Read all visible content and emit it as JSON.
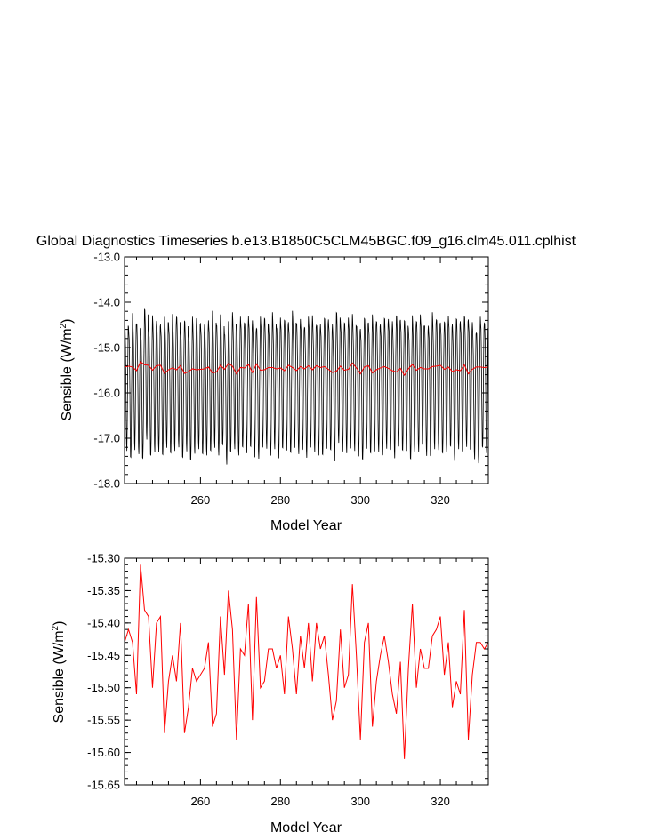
{
  "title": "Global Diagnostics Timeseries b.e13.B1850C5CLM45BGC.f09_g16.clm45.011.cplhist",
  "chart_data": [
    {
      "type": "line",
      "title": "Global Diagnostics Timeseries b.e13.B1850C5CLM45BGC.f09_g16.clm45.011.cplhist",
      "xlabel": "Model Year",
      "ylabel": "Sensible (W/m²)",
      "ylabel_main": "Sensible (W/m",
      "ylabel_sup": "2",
      "ylabel_tail": ")",
      "xlim": [
        241,
        332
      ],
      "ylim": [
        -18.0,
        -13.0
      ],
      "xticks": [
        260,
        280,
        300,
        320
      ],
      "xtick_labels": [
        "260",
        "280",
        "300",
        "320"
      ],
      "yticks": [
        -18.0,
        -17.0,
        -16.0,
        -15.0,
        -14.0,
        -13.0
      ],
      "ytick_labels": [
        "-18.0",
        "-17.0",
        "-16.0",
        "-15.0",
        "-14.0",
        "-13.0"
      ],
      "grid": false,
      "series": [
        {
          "color": "#000000",
          "sampling": "monthly",
          "x_start": 241,
          "cycle": [
            -14.4,
            -14.5,
            -14.7,
            -15.1,
            -15.8,
            -16.6,
            -17.2,
            -17.3,
            -16.9,
            -16.0,
            -15.2,
            -14.6
          ],
          "yearly_offsets": [
            0.05,
            -0.15,
            0.1,
            -0.05,
            -0.2,
            0.3,
            -0.1,
            0.05,
            0.0,
            -0.12,
            0.12,
            -0.05,
            0.08,
            0.1,
            -0.18,
            0.04,
            -0.2,
            0.02,
            0.06,
            -0.1,
            -0.05,
            0.0,
            0.15,
            -0.08,
            0.1,
            -0.25,
            -0.02,
            0.12,
            -0.08,
            0.05,
            0.0,
            0.09,
            -0.06,
            -0.15,
            0.05,
            0.1,
            -0.1,
            0.12,
            -0.14,
            0.03,
            0.06,
            -0.04,
            0.15,
            -0.05,
            0.0,
            -0.1,
            0.08,
            0.05,
            -0.08,
            -0.12,
            0.1,
            0.02,
            -0.15,
            0.2,
            -0.04,
            0.0,
            0.06,
            0.08,
            -0.1,
            -0.22,
            0.1,
            -0.05,
            0.07,
            0.0,
            -0.12,
            0.1,
            0.03,
            -0.08,
            0.12,
            -0.02,
            0.05,
            -0.18,
            0.05,
            0.0,
            0.1,
            -0.06,
            -0.12,
            0.12,
            0.04,
            -0.08,
            0.02,
            0.1,
            -0.14,
            0.06,
            -0.05,
            0.14,
            0.02,
            -0.1,
            -0.25,
            0.05,
            0.0
          ]
        },
        {
          "color": "#ff0000",
          "sampling": "annual",
          "x": [
            241,
            242,
            243,
            244,
            245,
            246,
            247,
            248,
            249,
            250,
            251,
            252,
            253,
            254,
            255,
            256,
            257,
            258,
            259,
            260,
            261,
            262,
            263,
            264,
            265,
            266,
            267,
            268,
            269,
            270,
            271,
            272,
            273,
            274,
            275,
            276,
            277,
            278,
            279,
            280,
            281,
            282,
            283,
            284,
            285,
            286,
            287,
            288,
            289,
            290,
            291,
            292,
            293,
            294,
            295,
            296,
            297,
            298,
            299,
            300,
            301,
            302,
            303,
            304,
            305,
            306,
            307,
            308,
            309,
            310,
            311,
            312,
            313,
            314,
            315,
            316,
            317,
            318,
            319,
            320,
            321,
            322,
            323,
            324,
            325,
            326,
            327,
            328,
            329,
            330,
            331,
            332
          ],
          "values": [
            -15.43,
            -15.41,
            -15.43,
            -15.51,
            -15.31,
            -15.38,
            -15.39,
            -15.5,
            -15.4,
            -15.39,
            -15.57,
            -15.49,
            -15.45,
            -15.49,
            -15.4,
            -15.57,
            -15.53,
            -15.47,
            -15.49,
            -15.48,
            -15.47,
            -15.43,
            -15.56,
            -15.54,
            -15.39,
            -15.48,
            -15.35,
            -15.41,
            -15.58,
            -15.44,
            -15.45,
            -15.37,
            -15.55,
            -15.36,
            -15.5,
            -15.49,
            -15.44,
            -15.44,
            -15.47,
            -15.45,
            -15.51,
            -15.39,
            -15.44,
            -15.51,
            -15.42,
            -15.47,
            -15.4,
            -15.49,
            -15.4,
            -15.44,
            -15.42,
            -15.48,
            -15.55,
            -15.52,
            -15.41,
            -15.5,
            -15.48,
            -15.34,
            -15.45,
            -15.58,
            -15.43,
            -15.4,
            -15.56,
            -15.49,
            -15.45,
            -15.42,
            -15.46,
            -15.51,
            -15.54,
            -15.46,
            -15.61,
            -15.47,
            -15.37,
            -15.5,
            -15.44,
            -15.47,
            -15.47,
            -15.42,
            -15.41,
            -15.39,
            -15.48,
            -15.43,
            -15.53,
            -15.49,
            -15.51,
            -15.38,
            -15.58,
            -15.48,
            -15.43,
            -15.43,
            -15.44,
            -15.43
          ]
        }
      ]
    },
    {
      "type": "line",
      "title": "",
      "xlabel": "Model Year",
      "ylabel": "Sensible (W/m²)",
      "ylabel_main": "Sensible (W/m",
      "ylabel_sup": "2",
      "ylabel_tail": ")",
      "xlim": [
        241,
        332
      ],
      "ylim": [
        -15.65,
        -15.3
      ],
      "xticks": [
        260,
        280,
        300,
        320
      ],
      "xtick_labels": [
        "260",
        "280",
        "300",
        "320"
      ],
      "yticks": [
        -15.65,
        -15.6,
        -15.55,
        -15.5,
        -15.45,
        -15.4,
        -15.35,
        -15.3
      ],
      "ytick_labels": [
        "-15.65",
        "-15.60",
        "-15.55",
        "-15.50",
        "-15.45",
        "-15.40",
        "-15.35",
        "-15.30"
      ],
      "grid": false,
      "series": [
        {
          "color": "#ff0000",
          "x": [
            241,
            242,
            243,
            244,
            245,
            246,
            247,
            248,
            249,
            250,
            251,
            252,
            253,
            254,
            255,
            256,
            257,
            258,
            259,
            260,
            261,
            262,
            263,
            264,
            265,
            266,
            267,
            268,
            269,
            270,
            271,
            272,
            273,
            274,
            275,
            276,
            277,
            278,
            279,
            280,
            281,
            282,
            283,
            284,
            285,
            286,
            287,
            288,
            289,
            290,
            291,
            292,
            293,
            294,
            295,
            296,
            297,
            298,
            299,
            300,
            301,
            302,
            303,
            304,
            305,
            306,
            307,
            308,
            309,
            310,
            311,
            312,
            313,
            314,
            315,
            316,
            317,
            318,
            319,
            320,
            321,
            322,
            323,
            324,
            325,
            326,
            327,
            328,
            329,
            330,
            331,
            332
          ],
          "values": [
            -15.43,
            -15.41,
            -15.43,
            -15.51,
            -15.31,
            -15.38,
            -15.39,
            -15.5,
            -15.4,
            -15.39,
            -15.57,
            -15.49,
            -15.45,
            -15.49,
            -15.4,
            -15.57,
            -15.53,
            -15.47,
            -15.49,
            -15.48,
            -15.47,
            -15.43,
            -15.56,
            -15.54,
            -15.39,
            -15.48,
            -15.35,
            -15.41,
            -15.58,
            -15.44,
            -15.45,
            -15.37,
            -15.55,
            -15.36,
            -15.5,
            -15.49,
            -15.44,
            -15.44,
            -15.47,
            -15.45,
            -15.51,
            -15.39,
            -15.44,
            -15.51,
            -15.42,
            -15.47,
            -15.4,
            -15.49,
            -15.4,
            -15.44,
            -15.42,
            -15.48,
            -15.55,
            -15.52,
            -15.41,
            -15.5,
            -15.48,
            -15.34,
            -15.45,
            -15.58,
            -15.43,
            -15.4,
            -15.56,
            -15.49,
            -15.45,
            -15.42,
            -15.46,
            -15.51,
            -15.54,
            -15.46,
            -15.61,
            -15.47,
            -15.37,
            -15.5,
            -15.44,
            -15.47,
            -15.47,
            -15.42,
            -15.41,
            -15.39,
            -15.48,
            -15.43,
            -15.53,
            -15.49,
            -15.51,
            -15.38,
            -15.58,
            -15.48,
            -15.43,
            -15.43,
            -15.44,
            -15.43
          ]
        }
      ]
    }
  ]
}
